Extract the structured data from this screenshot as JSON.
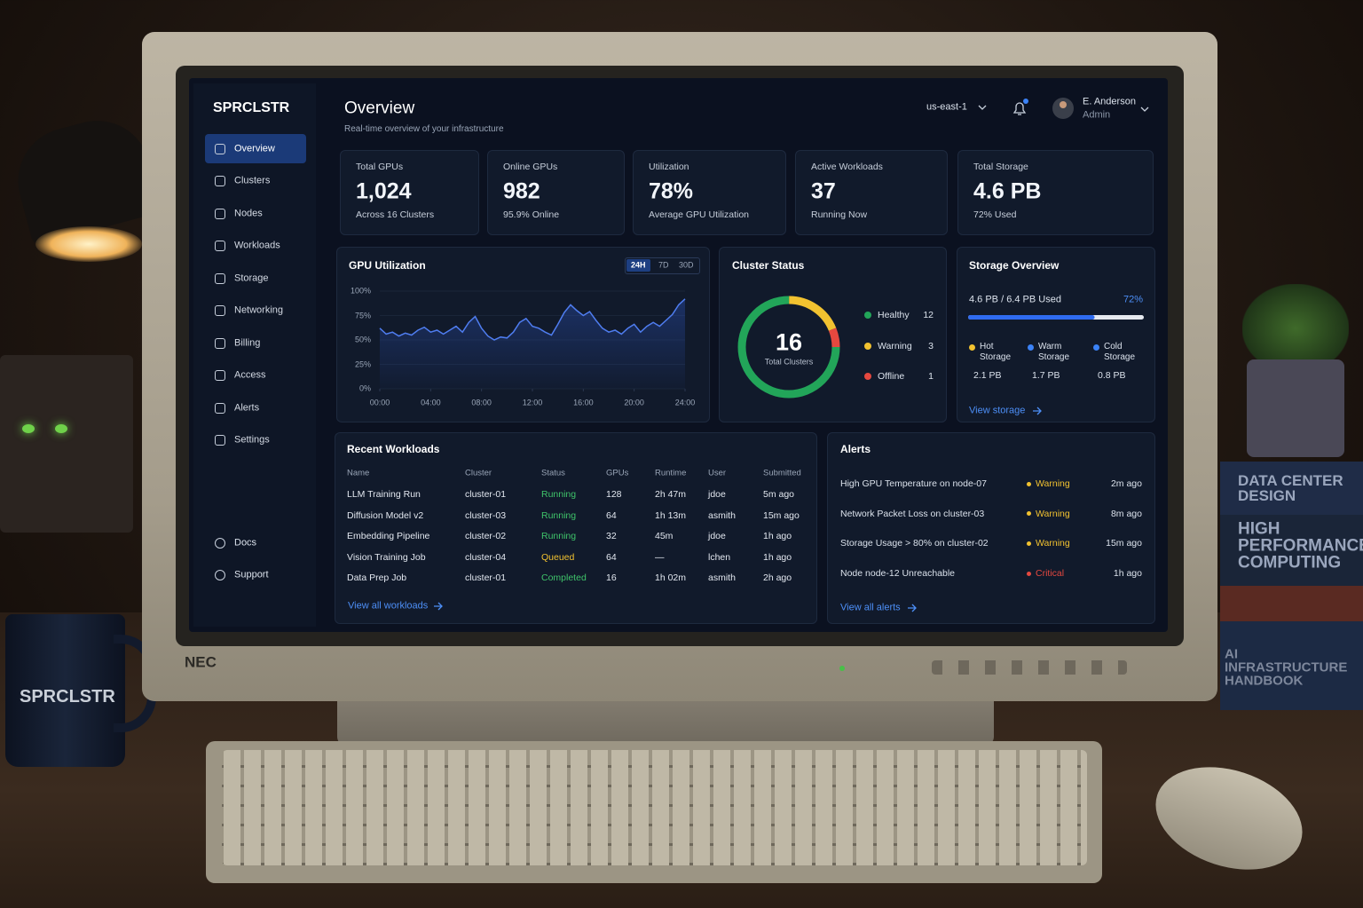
{
  "scene": {
    "monitor_brand": "NEC",
    "mug": "SPRCLSTR",
    "books": [
      "DATA CENTER DESIGN",
      "HIGH PERFORMANCE COMPUTING",
      "AI INFRASTRUCTURE HANDBOOK"
    ]
  },
  "sidebar": {
    "brand": "SPRCLSTR",
    "nav": [
      "Overview",
      "Clusters",
      "Nodes",
      "Workloads",
      "Storage",
      "Networking",
      "Billing",
      "Access",
      "Alerts",
      "Settings"
    ],
    "footer": [
      "Docs",
      "Support"
    ]
  },
  "header": {
    "title": "Overview",
    "subtitle": "Real-time overview of your infrastructure",
    "region": "us-east-1",
    "user_name": "E. Anderson",
    "user_role": "Admin"
  },
  "kpis": [
    {
      "label": "Total GPUs",
      "value": "1,024",
      "note": "Across 16 Clusters"
    },
    {
      "label": "Online GPUs",
      "value": "982",
      "note": "95.9% Online"
    },
    {
      "label": "Utilization",
      "value": "78%",
      "note": "Average GPU Utilization"
    },
    {
      "label": "Active Workloads",
      "value": "37",
      "note": "Running Now"
    },
    {
      "label": "Total Storage",
      "value": "4.6 PB",
      "note": "72% Used"
    }
  ],
  "gpu_utilization": {
    "type": "line",
    "title": "GPU Utilization",
    "ranges": [
      "24H",
      "7D",
      "30D"
    ],
    "color": "#4f7df0",
    "x": [
      0,
      0.5,
      1,
      1.5,
      2,
      2.5,
      3,
      3.5,
      4,
      4.5,
      5,
      5.5,
      6,
      6.5,
      7,
      7.5,
      8,
      8.5,
      9,
      9.5,
      10,
      10.5,
      11,
      11.5,
      12,
      12.5,
      13,
      13.5,
      14,
      14.5,
      15,
      15.5,
      16,
      16.5,
      17,
      17.5,
      18,
      18.5,
      19,
      19.5,
      20,
      20.5,
      21,
      21.5,
      22,
      22.5,
      23,
      23.5,
      24
    ],
    "values": [
      62,
      56,
      58,
      54,
      57,
      55,
      60,
      63,
      58,
      60,
      56,
      60,
      64,
      58,
      68,
      74,
      62,
      54,
      50,
      53,
      52,
      58,
      68,
      72,
      64,
      62,
      58,
      55,
      66,
      78,
      86,
      80,
      75,
      79,
      70,
      62,
      58,
      60,
      56,
      62,
      66,
      58,
      64,
      68,
      64,
      70,
      76,
      86,
      92
    ],
    "xlim": [
      0,
      24
    ],
    "xticks": [
      {
        "value": 0,
        "label": "00:00"
      },
      {
        "value": 4,
        "label": "04:00"
      },
      {
        "value": 8,
        "label": "08:00"
      },
      {
        "value": 12,
        "label": "12:00"
      },
      {
        "value": 16,
        "label": "16:00"
      },
      {
        "value": 20,
        "label": "20:00"
      },
      {
        "value": 24,
        "label": "24:00"
      }
    ],
    "ylim": [
      0,
      100
    ],
    "yticks": [
      {
        "value": 0,
        "label": "0%"
      },
      {
        "value": 25,
        "label": "25%"
      },
      {
        "value": 50,
        "label": "50%"
      },
      {
        "value": 75,
        "label": "75%"
      },
      {
        "value": 100,
        "label": "100%"
      }
    ]
  },
  "cluster_status": {
    "type": "donut",
    "title": "Cluster Status",
    "total": "16",
    "total_label": "Total Clusters",
    "items": [
      {
        "name": "Healthy",
        "value": 12,
        "color": "#22a559"
      },
      {
        "name": "Warning",
        "value": 3,
        "color": "#f2c230"
      },
      {
        "name": "Offline",
        "value": 1,
        "color": "#e5483f"
      }
    ]
  },
  "storage": {
    "title": "Storage Overview",
    "summary": "4.6 PB / 6.4 PB Used",
    "used": {
      "value": 72,
      "label": "72%"
    },
    "color": "#2f6bf0",
    "tiers": [
      {
        "name": "Hot Storage",
        "value": "2.1 PB",
        "color": "#f2c230"
      },
      {
        "name": "Warm Storage",
        "value": "1.7 PB",
        "color": "#3b82f6"
      },
      {
        "name": "Cold Storage",
        "value": "0.8 PB",
        "color": "#3b82f6"
      }
    ],
    "link": "View storage"
  },
  "workloads": {
    "title": "Recent Workloads",
    "columns": [
      "Name",
      "Cluster",
      "Status",
      "GPUs",
      "Runtime",
      "User",
      "Submitted"
    ],
    "rows": [
      [
        "LLM Training Run",
        "cluster-01",
        "Running",
        "128",
        "2h 47m",
        "jdoe",
        "5m ago"
      ],
      [
        "Diffusion Model v2",
        "cluster-03",
        "Running",
        "64",
        "1h 13m",
        "asmith",
        "15m ago"
      ],
      [
        "Embedding Pipeline",
        "cluster-02",
        "Running",
        "32",
        "45m",
        "jdoe",
        "1h ago"
      ],
      [
        "Vision Training Job",
        "cluster-04",
        "Queued",
        "64",
        "—",
        "lchen",
        "1h ago"
      ],
      [
        "Data Prep Job",
        "cluster-01",
        "Completed",
        "16",
        "1h 02m",
        "asmith",
        "2h ago"
      ]
    ],
    "status_colors": [
      "#3fc46a",
      "#3fc46a",
      "#3fc46a",
      "#f2c230",
      "#3fc46a"
    ],
    "link": "View all workloads"
  },
  "alerts": {
    "title": "Alerts",
    "rows": [
      {
        "message": "High GPU Temperature on node-07",
        "level": "Warning",
        "color": "#f2c230",
        "time": "2m ago"
      },
      {
        "message": "Network Packet Loss on cluster-03",
        "level": "Warning",
        "color": "#f2c230",
        "time": "8m ago"
      },
      {
        "message": "Storage Usage > 80% on cluster-02",
        "level": "Warning",
        "color": "#f2c230",
        "time": "15m ago"
      },
      {
        "message": "Node node-12 Unreachable",
        "level": "Critical",
        "color": "#e5483f",
        "time": "1h ago"
      }
    ],
    "link": "View all alerts"
  }
}
